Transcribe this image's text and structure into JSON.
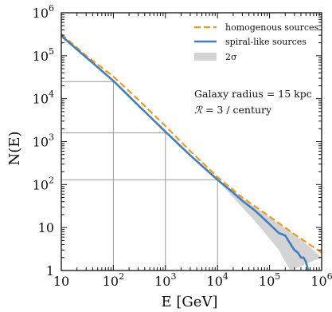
{
  "chart_data": {
    "type": "line",
    "xlabel": "E [GeV]",
    "ylabel": "N(E)",
    "xscale": "log",
    "yscale": "log",
    "xlim": [
      10,
      1000000
    ],
    "ylim": [
      1,
      1000000
    ],
    "xticks": [
      {
        "value": 10,
        "base": "10",
        "exp": ""
      },
      {
        "value": 100,
        "base": "10",
        "exp": "2"
      },
      {
        "value": 1000,
        "base": "10",
        "exp": "3"
      },
      {
        "value": 10000,
        "base": "10",
        "exp": "4"
      },
      {
        "value": 100000,
        "base": "10",
        "exp": "5"
      },
      {
        "value": 1000000,
        "base": "10",
        "exp": "6"
      }
    ],
    "yticks": [
      {
        "value": 1,
        "base": "1",
        "exp": ""
      },
      {
        "value": 10,
        "base": "10",
        "exp": ""
      },
      {
        "value": 100,
        "base": "10",
        "exp": "2"
      },
      {
        "value": 1000,
        "base": "10",
        "exp": "3"
      },
      {
        "value": 10000,
        "base": "10",
        "exp": "4"
      },
      {
        "value": 100000,
        "base": "10",
        "exp": "5"
      },
      {
        "value": 1000000,
        "base": "10",
        "exp": "6"
      }
    ],
    "legend_position": "top-right",
    "series": [
      {
        "name": "homogenous sources",
        "style": "dashed",
        "color": "#f29a1f",
        "points": [
          [
            10,
            320000
          ],
          [
            30,
            100000
          ],
          [
            100,
            33000
          ],
          [
            300,
            9500
          ],
          [
            1000,
            2300
          ],
          [
            3000,
            600
          ],
          [
            10000,
            150
          ],
          [
            30000,
            50
          ],
          [
            100000,
            18
          ],
          [
            300000,
            7
          ],
          [
            1000000,
            2.6
          ]
        ]
      },
      {
        "name": "spiral-like sources",
        "style": "solid",
        "color": "#3f7fc0",
        "points": [
          [
            10,
            290000
          ],
          [
            30,
            92000
          ],
          [
            100,
            26000
          ],
          [
            300,
            7000
          ],
          [
            1000,
            1700
          ],
          [
            3000,
            480
          ],
          [
            10000,
            130
          ],
          [
            20000,
            65
          ],
          [
            30000,
            42
          ],
          [
            50000,
            26
          ],
          [
            70000,
            18
          ],
          [
            100000,
            12
          ],
          [
            150000,
            7.5
          ],
          [
            200000,
            6.5
          ],
          [
            250000,
            4.2
          ],
          [
            300000,
            3
          ],
          [
            350000,
            2.6
          ],
          [
            400000,
            2
          ],
          [
            450000,
            2
          ],
          [
            500000,
            1.6
          ],
          [
            550000,
            1
          ],
          [
            600000,
            1
          ]
        ]
      },
      {
        "name": "2σ",
        "style": "band",
        "color": "#d4d4d4",
        "lower": [
          [
            10,
            290000
          ],
          [
            100,
            26000
          ],
          [
            1000,
            1700
          ],
          [
            10000,
            125
          ],
          [
            20000,
            50
          ],
          [
            50000,
            15
          ],
          [
            100000,
            5.5
          ],
          [
            150000,
            3
          ],
          [
            200000,
            1.6
          ],
          [
            250000,
            1
          ]
        ],
        "upper": [
          [
            10,
            290000
          ],
          [
            100,
            26000
          ],
          [
            1000,
            1700
          ],
          [
            10000,
            135
          ],
          [
            30000,
            48
          ],
          [
            100000,
            17
          ],
          [
            300000,
            7
          ],
          [
            600000,
            3.5
          ],
          [
            1000000,
            2
          ]
        ]
      }
    ],
    "reference_lines": [
      {
        "x": 100,
        "y": 25000
      },
      {
        "x": 1000,
        "y": 1600
      },
      {
        "x": 10000,
        "y": 130
      }
    ],
    "annotations": [
      {
        "text": "Galaxy radius = 15 kpc"
      },
      {
        "text_symbol": "ℛ",
        "text_rest": " = 3 / century"
      }
    ]
  }
}
